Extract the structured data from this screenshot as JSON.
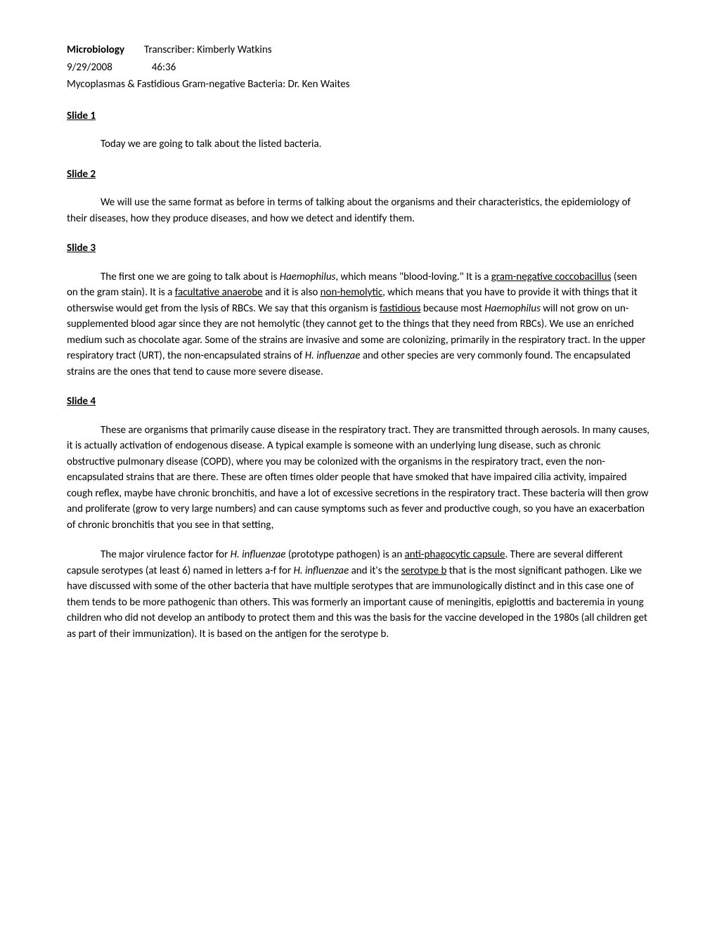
{
  "header": {
    "course_label": "Microbiology",
    "transcriber_label": "Transcriber: Kimberly Watkins",
    "date": "9/29/2008",
    "time": "46:36",
    "lecture_title": "Mycoplasmas & Fastidious Gram-negative Bacteria: Dr. Ken Waites"
  },
  "slides": {
    "s1": {
      "heading": "Slide 1",
      "p1": "Today we are going to talk about the listed bacteria."
    },
    "s2": {
      "heading": "Slide 2",
      "p1": "We will use the same format as before in terms of talking about the organisms and their characteristics, the epidemiology of their diseases, how they produce diseases, and how we detect and identify them."
    },
    "s3": {
      "heading": "Slide 3",
      "p1_a": "The first one we are going to talk about is ",
      "p1_haemo": "Haemophilus",
      "p1_b": ", which means \"blood-loving.\" It is a ",
      "p1_gram": "gram-negative coccobacillus",
      "p1_c": " (seen on the gram stain). It is a ",
      "p1_fa": "facultative anaerobe",
      "p1_d": " and it is also ",
      "p1_nonhemo": "non-hemolytic",
      "p1_e": ", which means that you have to provide it with things that it otherswise would get from the lysis of RBCs. We say that this organism is ",
      "p1_fast": "fastidious",
      "p1_f": " because most ",
      "p1_haemo2": "Haemophilus",
      "p1_g": " will not grow on un-supplemented blood agar since they are not hemolytic (they cannot get to the things that they need from RBCs).  We use an enriched medium such as chocolate agar.  Some of the strains are invasive and some are colonizing, primarily in the respiratory tract. In the upper respiratory tract (URT), the non-encapsulated strains of ",
      "p1_hinf": "H. influenzae",
      "p1_h": " and other species are very commonly found.  The encapsulated strains are the ones that tend to cause more severe disease."
    },
    "s4": {
      "heading": "Slide 4",
      "p1": "These are organisms that primarily cause disease in the respiratory tract. They are transmitted through aerosols. In many causes, it is actually activation of endogenous disease. A typical example is someone with an underlying lung disease, such as chronic obstructive pulmonary disease (COPD), where you may be colonized with the organisms in the respiratory tract, even the non-encapsulated strains that are there. These are often times older people that have smoked that have impaired cilia activity, impaired cough reflex, maybe have chronic bronchitis, and have a lot of excessive secretions in the respiratory tract. These bacteria will then grow and proliferate (grow to very large numbers) and can cause symptoms such as fever and productive cough, so you have an exacerbation of chronic bronchitis that you see in that setting,",
      "p2_a": "The major virulence factor for ",
      "p2_hinf": "H. influenzae",
      "p2_b": " (prototype pathogen) is an ",
      "p2_cap": "anti-phagocytic capsule",
      "p2_c": ". There are several different capsule serotypes (at least 6) named in letters a-f for ",
      "p2_hinf2": "H. influenzae",
      "p2_d": " and it's the ",
      "p2_sero": "serotype b",
      "p2_e": " that is the most significant pathogen. Like we have discussed with some of the other bacteria that have multiple serotypes that are immunologically distinct and in this case one of them tends to be more pathogenic than others. This was formerly an important cause of meningitis, epiglottis and bacteremia in young children who did not develop an antibody to protect them and this was the basis for the vaccine developed in the 1980s (all children get as part of their immunization). It is based on the antigen for the serotype b."
    }
  }
}
